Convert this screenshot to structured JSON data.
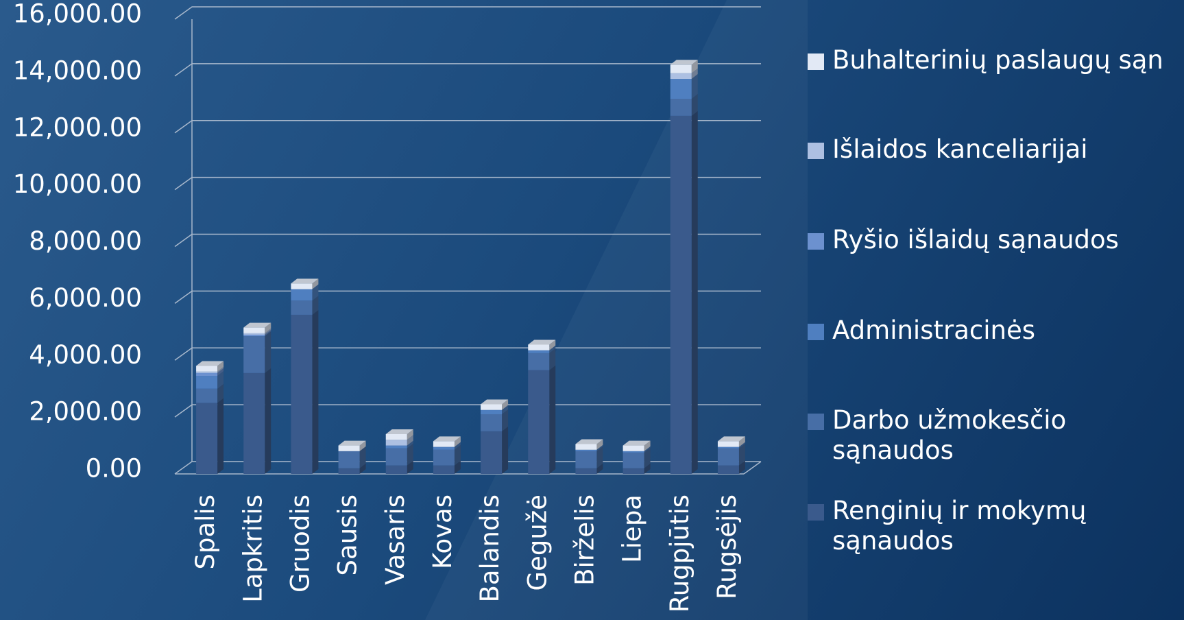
{
  "chart_data": {
    "type": "bar",
    "stacked": true,
    "legend": "right",
    "grid": true,
    "categories": [
      "Spalis",
      "Lapkritis",
      "Gruodis",
      "Sausis",
      "Vasaris",
      "Kovas",
      "Balandis",
      "Gegužė",
      "Birželis",
      "Liepa",
      "Rugpjūtis",
      "Rugsėjis"
    ],
    "series": [
      {
        "name": "Renginių ir mokymų sąnaudos",
        "color": "#3a5a8c",
        "values": [
          2500,
          3550,
          5600,
          200,
          300,
          300,
          1500,
          3650,
          200,
          200,
          12600,
          300
        ]
      },
      {
        "name": "Darbo užmokesčio sąnaudos",
        "color": "#476ea6",
        "values": [
          500,
          1300,
          500,
          600,
          600,
          550,
          600,
          600,
          600,
          550,
          600,
          600
        ]
      },
      {
        "name": "Administracinės",
        "color": "#4f7fc0",
        "values": [
          450,
          0,
          400,
          0,
          100,
          100,
          150,
          100,
          50,
          50,
          700,
          50
        ]
      },
      {
        "name": "Ryšio išlaidų sąnaudos",
        "color": "#6c91cf",
        "values": [
          100,
          50,
          0,
          0,
          0,
          0,
          0,
          0,
          0,
          0,
          0,
          0
        ]
      },
      {
        "name": "Išlaidos kanceliarijai",
        "color": "#adc0e2",
        "values": [
          50,
          50,
          0,
          0,
          200,
          0,
          0,
          0,
          0,
          0,
          200,
          0
        ]
      },
      {
        "name": "Buhalterinių paslaugų sąn",
        "color": "#e2e9f5",
        "values": [
          200,
          200,
          200,
          200,
          200,
          200,
          200,
          200,
          200,
          200,
          300,
          200
        ]
      }
    ],
    "ylim": [
      0,
      16000
    ],
    "yticks": [
      {
        "value": 0,
        "label": "0.00"
      },
      {
        "value": 2000,
        "label": "2,000.00"
      },
      {
        "value": 4000,
        "label": "4,000.00"
      },
      {
        "value": 6000,
        "label": "6,000.00"
      },
      {
        "value": 8000,
        "label": "8,000.00"
      },
      {
        "value": 10000,
        "label": "10,000.00"
      },
      {
        "value": 12000,
        "label": "12,000.00"
      },
      {
        "value": 14000,
        "label": "14,000.00"
      },
      {
        "value": 16000,
        "label": "16,000.00"
      }
    ]
  }
}
